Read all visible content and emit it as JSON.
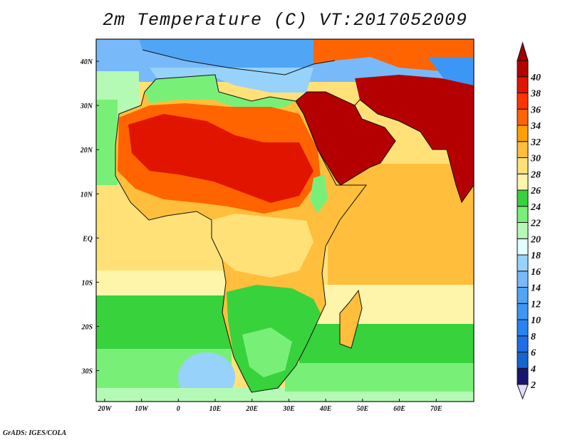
{
  "title": "2m Temperature (C) VT:2017052009",
  "credit": "GrADS: IGES/COLA",
  "map": {
    "lon_range": [
      -22.3,
      80.2
    ],
    "lat_range": [
      -37,
      45
    ],
    "x_ticks": [
      {
        "value": -20,
        "label": "20W"
      },
      {
        "value": -10,
        "label": "10W"
      },
      {
        "value": 0,
        "label": "0"
      },
      {
        "value": 10,
        "label": "10E"
      },
      {
        "value": 20,
        "label": "20E"
      },
      {
        "value": 30,
        "label": "30E"
      },
      {
        "value": 40,
        "label": "40E"
      },
      {
        "value": 50,
        "label": "50E"
      },
      {
        "value": 60,
        "label": "60E"
      },
      {
        "value": 70,
        "label": "70E"
      }
    ],
    "y_ticks": [
      {
        "value": 40,
        "label": "40N"
      },
      {
        "value": 30,
        "label": "30N"
      },
      {
        "value": 20,
        "label": "20N"
      },
      {
        "value": 10,
        "label": "10N"
      },
      {
        "value": 0,
        "label": "EQ"
      },
      {
        "value": -10,
        "label": "10S"
      },
      {
        "value": -20,
        "label": "20S"
      },
      {
        "value": -30,
        "label": "30S"
      }
    ]
  },
  "colorbar": {
    "levels": [
      "2",
      "4",
      "6",
      "8",
      "10",
      "12",
      "14",
      "16",
      "18",
      "20",
      "22",
      "24",
      "26",
      "28",
      "30",
      "32",
      "34",
      "36",
      "38",
      "40"
    ],
    "colors": [
      "#1a1470",
      "#1464d2",
      "#1e6ee6",
      "#2882f0",
      "#3c96f5",
      "#50a5f5",
      "#78b9fa",
      "#96d2fa",
      "#e1ffff",
      "#b4fab4",
      "#78f078",
      "#37d23c",
      "#fff5aa",
      "#ffe178",
      "#ffbe3c",
      "#ffa000",
      "#ff6400",
      "#ff3200",
      "#e11400",
      "#b40000"
    ],
    "under_color": "#e1dcff",
    "over_color": "#a00000"
  }
}
